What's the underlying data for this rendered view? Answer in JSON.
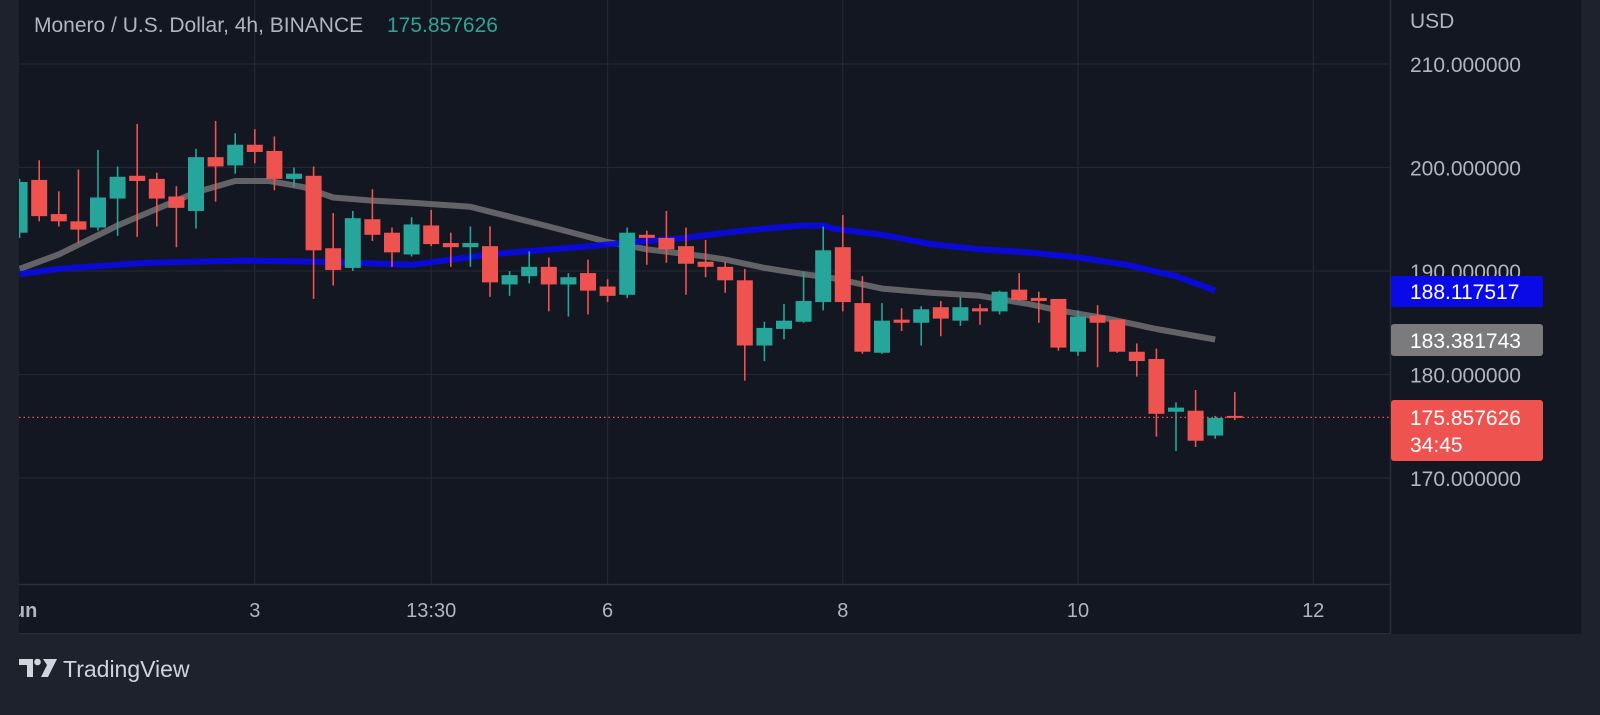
{
  "header": {
    "title": "Monero / U.S. Dollar, 4h, BINANCE",
    "last_price": "175.857626"
  },
  "price_axis": {
    "currency": "USD",
    "labels": {
      "ma_blue": "188.117517",
      "ma_grey": "183.381743",
      "last_price": "175.857626",
      "countdown": "34:45"
    }
  },
  "footer": {
    "brand": "TradingView"
  },
  "colors": {
    "up": "#26a69a",
    "down": "#ef5350",
    "ma_blue": "#0a0ae6",
    "ma_grey": "#6a6a6e",
    "background": "#131722",
    "grid": "#232733",
    "text": "#b2b5be"
  },
  "chart_data": {
    "type": "candlestick",
    "title": "Monero / U.S. Dollar, 4h, BINANCE",
    "ylabel": "USD",
    "ylim": [
      160,
      215
    ],
    "grid": true,
    "y_ticks": [
      {
        "value": 210,
        "label": "210.000000"
      },
      {
        "value": 200,
        "label": "200.000000"
      },
      {
        "value": 190,
        "label": "190.000000"
      },
      {
        "value": 180,
        "label": "180.000000"
      },
      {
        "value": 170,
        "label": "170.000000"
      }
    ],
    "x_ticks": [
      {
        "index": 0,
        "label": "Jun"
      },
      {
        "index": 12,
        "label": "3"
      },
      {
        "index": 21,
        "label": "13:30"
      },
      {
        "index": 30,
        "label": "6"
      },
      {
        "index": 42,
        "label": "8"
      },
      {
        "index": 54,
        "label": "10"
      },
      {
        "index": 66,
        "label": "12"
      }
    ],
    "candles": [
      [
        193.7,
        198.9,
        193.2,
        198.6
      ],
      [
        198.8,
        200.7,
        194.8,
        195.3
      ],
      [
        195.5,
        197.7,
        194.3,
        194.8
      ],
      [
        194.8,
        199.8,
        192.7,
        194.0
      ],
      [
        194.2,
        201.7,
        193.9,
        197.1
      ],
      [
        197.0,
        200.1,
        193.4,
        199.1
      ],
      [
        199.2,
        204.2,
        193.3,
        198.7
      ],
      [
        198.9,
        199.5,
        194.3,
        197.0
      ],
      [
        197.2,
        198.2,
        192.3,
        196.1
      ],
      [
        195.8,
        201.8,
        194.1,
        201.0
      ],
      [
        201.0,
        204.5,
        196.7,
        200.1
      ],
      [
        200.2,
        203.3,
        199.4,
        202.2
      ],
      [
        202.2,
        203.7,
        200.4,
        201.5
      ],
      [
        201.6,
        203.0,
        197.8,
        198.9
      ],
      [
        198.9,
        200.0,
        198.1,
        199.4
      ],
      [
        199.2,
        200.1,
        187.3,
        192.0
      ],
      [
        192.2,
        195.6,
        188.6,
        190.1
      ],
      [
        190.3,
        195.8,
        190.0,
        195.1
      ],
      [
        195.0,
        197.9,
        192.9,
        193.5
      ],
      [
        193.7,
        194.2,
        190.4,
        191.8
      ],
      [
        191.6,
        195.2,
        191.4,
        194.5
      ],
      [
        194.4,
        195.9,
        192.4,
        192.6
      ],
      [
        192.7,
        193.7,
        190.4,
        192.3
      ],
      [
        192.3,
        194.3,
        190.4,
        192.7
      ],
      [
        192.4,
        194.3,
        187.5,
        188.9
      ],
      [
        188.7,
        190.0,
        187.6,
        189.6
      ],
      [
        189.5,
        191.9,
        188.8,
        190.4
      ],
      [
        190.4,
        191.3,
        186.1,
        188.7
      ],
      [
        188.7,
        189.8,
        185.6,
        189.4
      ],
      [
        189.8,
        191.1,
        185.8,
        188.1
      ],
      [
        188.5,
        189.2,
        187.0,
        187.6
      ],
      [
        187.7,
        194.2,
        187.4,
        193.7
      ],
      [
        193.5,
        193.9,
        190.6,
        193.2
      ],
      [
        193.2,
        195.8,
        190.8,
        192.1
      ],
      [
        192.4,
        194.2,
        187.7,
        190.7
      ],
      [
        190.9,
        193.0,
        189.4,
        190.4
      ],
      [
        190.4,
        190.9,
        187.9,
        189.1
      ],
      [
        189.1,
        190.2,
        179.4,
        182.8
      ],
      [
        182.8,
        185.1,
        181.3,
        184.5
      ],
      [
        184.4,
        186.8,
        183.4,
        185.2
      ],
      [
        185.1,
        189.9,
        185.0,
        187.1
      ],
      [
        187.0,
        194.3,
        186.2,
        192.0
      ],
      [
        192.3,
        195.4,
        186.1,
        187.0
      ],
      [
        186.9,
        189.5,
        182.0,
        182.2
      ],
      [
        182.1,
        186.9,
        182.0,
        185.2
      ],
      [
        185.3,
        186.4,
        184.2,
        185.0
      ],
      [
        185.0,
        186.6,
        182.8,
        186.3
      ],
      [
        186.5,
        187.1,
        183.7,
        185.4
      ],
      [
        185.2,
        187.5,
        184.7,
        186.5
      ],
      [
        186.4,
        186.8,
        184.8,
        186.1
      ],
      [
        186.1,
        188.1,
        185.8,
        188.0
      ],
      [
        188.2,
        189.8,
        187.1,
        187.2
      ],
      [
        187.4,
        188.0,
        185.0,
        187.1
      ],
      [
        187.3,
        187.3,
        182.3,
        182.6
      ],
      [
        182.2,
        186.2,
        181.8,
        185.6
      ],
      [
        185.7,
        186.7,
        180.7,
        185.0
      ],
      [
        185.3,
        185.3,
        182.1,
        182.2
      ],
      [
        182.2,
        183.0,
        179.8,
        181.3
      ],
      [
        181.5,
        182.5,
        174.0,
        176.2
      ],
      [
        176.4,
        177.3,
        172.6,
        176.8
      ],
      [
        176.5,
        178.5,
        173.0,
        173.6
      ],
      [
        174.1,
        176.0,
        173.8,
        175.8
      ],
      [
        176.0,
        178.3,
        175.6,
        175.857626
      ]
    ],
    "candle_fields": [
      "open",
      "high",
      "low",
      "close"
    ],
    "series": [
      {
        "name": "MA grey",
        "color": "#6a6a6e",
        "last": 183.381743,
        "points": [
          [
            0,
            190.2
          ],
          [
            2,
            191.6
          ],
          [
            5,
            194.4
          ],
          [
            7,
            196.0
          ],
          [
            9,
            197.6
          ],
          [
            11,
            198.7
          ],
          [
            12.75,
            198.7
          ],
          [
            14.5,
            198.1
          ],
          [
            16,
            197.1
          ],
          [
            18,
            196.8
          ],
          [
            20,
            196.6
          ],
          [
            23,
            196.2
          ],
          [
            27,
            194.3
          ],
          [
            30,
            192.8
          ],
          [
            32,
            192.1
          ],
          [
            35,
            191.4
          ],
          [
            36,
            191.1
          ],
          [
            38,
            190.3
          ],
          [
            40,
            189.7
          ],
          [
            41.5,
            189.3
          ],
          [
            44,
            188.3
          ],
          [
            46.5,
            187.9
          ],
          [
            49,
            187.6
          ],
          [
            51.5,
            186.8
          ],
          [
            53,
            186.2
          ],
          [
            55.5,
            185.4
          ],
          [
            58,
            184.4
          ],
          [
            61,
            183.38
          ]
        ]
      },
      {
        "name": "MA blue",
        "color": "#0a0ae6",
        "last": 188.117517,
        "points": [
          [
            0,
            189.7
          ],
          [
            2,
            190.2
          ],
          [
            6.5,
            190.8
          ],
          [
            11.5,
            191.0
          ],
          [
            15.5,
            190.9
          ],
          [
            20,
            190.6
          ],
          [
            24,
            191.6
          ],
          [
            29,
            192.4
          ],
          [
            32,
            192.9
          ],
          [
            34,
            193.2
          ],
          [
            36,
            193.7
          ],
          [
            38,
            194.1
          ],
          [
            40,
            194.4
          ],
          [
            41,
            194.4
          ],
          [
            41.5,
            194.1
          ],
          [
            44,
            193.5
          ],
          [
            46.5,
            192.6
          ],
          [
            49,
            192.1
          ],
          [
            51.5,
            191.8
          ],
          [
            54,
            191.3
          ],
          [
            56.5,
            190.6
          ],
          [
            59,
            189.5
          ],
          [
            61,
            188.12
          ]
        ]
      }
    ],
    "last_price": 175.857626
  }
}
